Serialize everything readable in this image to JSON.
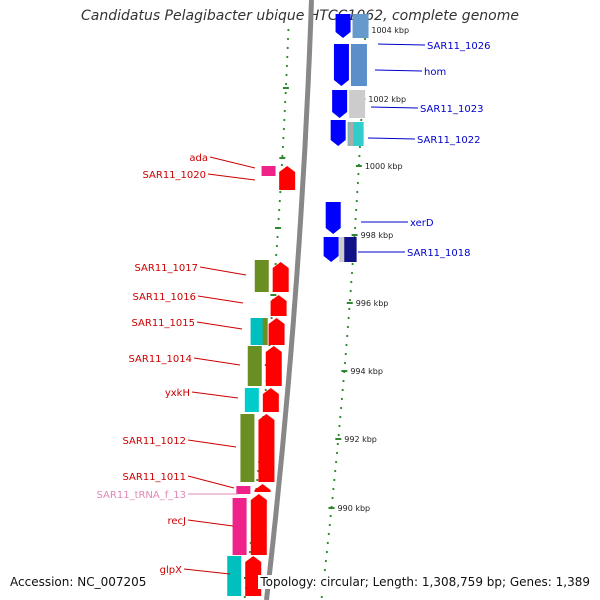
{
  "title": "Candidatus Pelagibacter ubique HTCC1062, complete genome",
  "footer": {
    "accession": "Accession: NC_007205",
    "topology": "Topology: circular; Length: 1,308,759 bp; Genes: 1,389"
  },
  "colors": {
    "forward_label": "#0000cc",
    "reverse_label": "#cc0000",
    "trna_label": "#e088b4",
    "forward_cds": "#0000ff",
    "reverse_cds": "#ff0000",
    "backbone": "#888888",
    "tick": "#2f8a2f"
  },
  "forward_labels": [
    {
      "name": "SAR11_1026"
    },
    {
      "name": "hom"
    },
    {
      "name": "SAR11_1023"
    },
    {
      "name": "SAR11_1022"
    },
    {
      "name": "xerD"
    },
    {
      "name": "SAR11_1018"
    }
  ],
  "reverse_labels": [
    {
      "name": "ada"
    },
    {
      "name": "SAR11_1020"
    },
    {
      "name": "SAR11_1017"
    },
    {
      "name": "SAR11_1016"
    },
    {
      "name": "SAR11_1015"
    },
    {
      "name": "SAR11_1014"
    },
    {
      "name": "yxkH"
    },
    {
      "name": "SAR11_1012"
    },
    {
      "name": "SAR11_1011"
    },
    {
      "name": "SAR11_tRNA_f_13",
      "trna": true
    },
    {
      "name": "recJ"
    },
    {
      "name": "glpX"
    }
  ],
  "scale_labels": [
    "1004 kbp",
    "1002 kbp",
    "1000 kbp",
    "998 kbp",
    "996 kbp",
    "994 kbp",
    "992 kbp",
    "990 kbp"
  ]
}
